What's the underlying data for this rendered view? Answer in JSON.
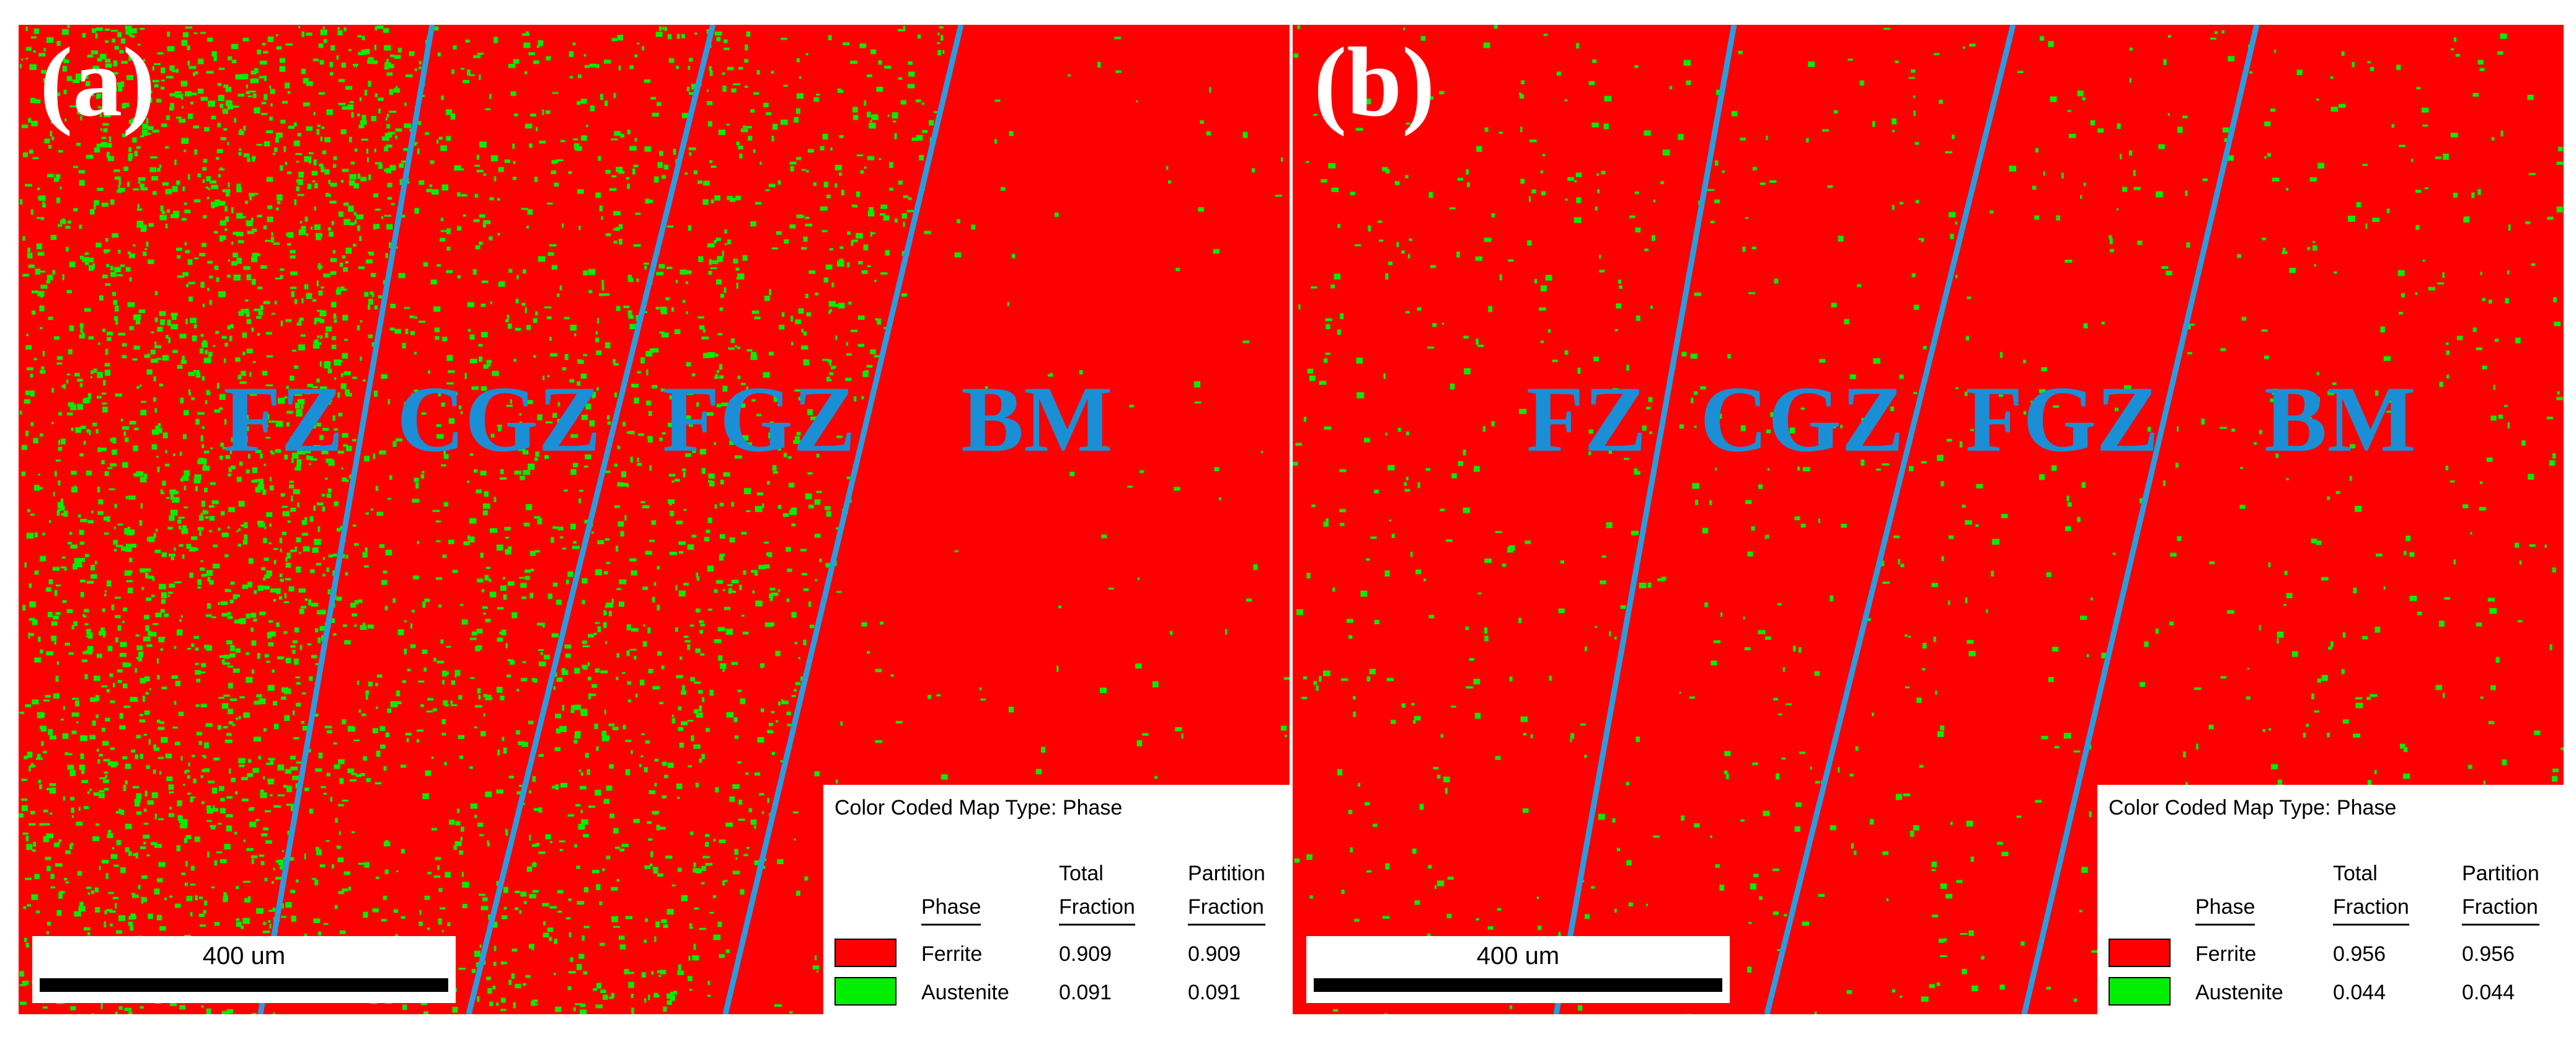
{
  "colors": {
    "ferrite": "#ff0000",
    "austenite": "#00ee00",
    "boundary": "#2a9ce0",
    "zone_text": "#1a8fd6"
  },
  "panels": [
    {
      "label": "(a)",
      "zones": [
        "FZ",
        "CGZ",
        "FGZ",
        "BM"
      ],
      "austenite_density": [
        0.42,
        0.2,
        0.24,
        0.02
      ],
      "legend": {
        "title": "Color Coded Map Type: Phase",
        "col_phase": "Phase",
        "col_total_1": "Total",
        "col_total_2": "Fraction",
        "col_part_1": "Partition",
        "col_part_2": "Fraction",
        "rows": [
          {
            "phase": "Ferrite",
            "total": "0.909",
            "partition": "0.909"
          },
          {
            "phase": "Austenite",
            "total": "0.091",
            "partition": "0.091"
          }
        ]
      },
      "scale_text": "400 um"
    },
    {
      "label": "(b)",
      "zones": [
        "FZ",
        "CGZ",
        "FGZ",
        "BM"
      ],
      "austenite_density": [
        0.06,
        0.05,
        0.05,
        0.05
      ],
      "legend": {
        "title": "Color Coded Map Type: Phase",
        "col_phase": "Phase",
        "col_total_1": "Total",
        "col_total_2": "Fraction",
        "col_part_1": "Partition",
        "col_part_2": "Fraction",
        "rows": [
          {
            "phase": "Ferrite",
            "total": "0.956",
            "partition": "0.956"
          },
          {
            "phase": "Austenite",
            "total": "0.044",
            "partition": "0.044"
          }
        ]
      },
      "scale_text": "400 um"
    }
  ]
}
